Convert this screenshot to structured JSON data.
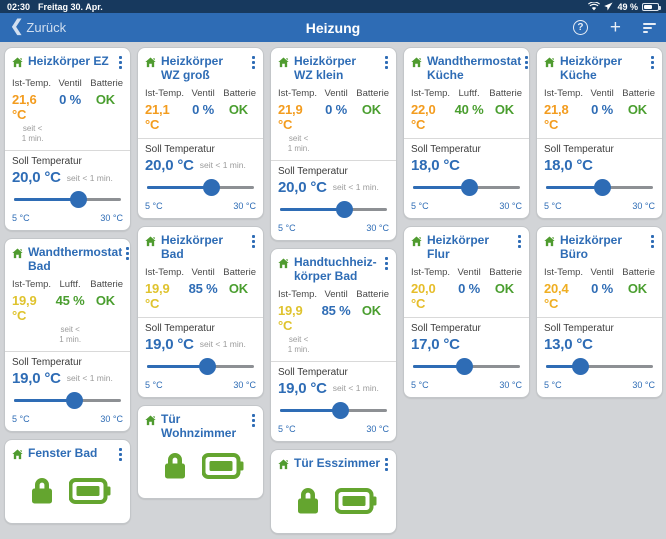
{
  "status_bar": {
    "time": "02:30",
    "date": "Freitag 30. Apr.",
    "battery_percent": "49 %"
  },
  "nav_bar": {
    "back_label": "Zurück",
    "back_chevron": "❮",
    "title": "Heizung",
    "help_glyph": "?",
    "plus_glyph": "+"
  },
  "labels": {
    "soll": "Soll Temperatur",
    "seit": "seit < 1 min.",
    "seit_lines": [
      "seit <",
      "1 min."
    ],
    "min_temp": "5 °C",
    "max_temp": "30 °C"
  },
  "colors": {
    "accent_blue": "#2e6cb5",
    "green": "#4a9e2f",
    "icon_green": "#64a52f",
    "orange": "#f39c1e",
    "yellow": "#dfc32e"
  },
  "grid": {
    "columns": [
      {
        "cards": [
          {
            "type": "thermostat",
            "title_lines": [
              "Heizkörper EZ"
            ],
            "stats": [
              {
                "label": "Ist-Temp.",
                "value": "21,6 °C",
                "color": "#f39c1e"
              },
              {
                "label": "Ventil",
                "value": "0 %",
                "color": "#2e6cb5"
              },
              {
                "label": "Batterie",
                "value": "OK",
                "color": "#4a9e2f"
              }
            ],
            "seit_under_stat": 0,
            "soll_value": "20,0 °C",
            "soll_seit": true,
            "slider_percent": 60
          },
          {
            "type": "thermostat",
            "title_lines": [
              "Wandthermostat",
              "Bad"
            ],
            "stats": [
              {
                "label": "Ist-Temp.",
                "value": "19,9 °C",
                "color": "#dfc32e"
              },
              {
                "label": "Luftf.",
                "value": "45 %",
                "color": "#4a9e2f"
              },
              {
                "label": "Batterie",
                "value": "OK",
                "color": "#4a9e2f"
              }
            ],
            "seit_under_stat": 1,
            "soll_value": "19,0 °C",
            "soll_seit": true,
            "slider_percent": 56
          },
          {
            "type": "lock",
            "title_lines": [
              "Fenster Bad"
            ]
          }
        ]
      },
      {
        "cards": [
          {
            "type": "thermostat",
            "title_lines": [
              "Heizkörper",
              "WZ groß"
            ],
            "stats": [
              {
                "label": "Ist-Temp.",
                "value": "21,1 °C",
                "color": "#f39c1e"
              },
              {
                "label": "Ventil",
                "value": "0 %",
                "color": "#2e6cb5"
              },
              {
                "label": "Batterie",
                "value": "OK",
                "color": "#4a9e2f"
              }
            ],
            "seit_under_stat": null,
            "soll_value": "20,0 °C",
            "soll_seit": true,
            "slider_percent": 60
          },
          {
            "type": "thermostat",
            "title_lines": [
              "Heizkörper Bad"
            ],
            "stats": [
              {
                "label": "Ist-Temp.",
                "value": "19,9 °C",
                "color": "#dfc32e"
              },
              {
                "label": "Ventil",
                "value": "85 %",
                "color": "#2e6cb5"
              },
              {
                "label": "Batterie",
                "value": "OK",
                "color": "#4a9e2f"
              }
            ],
            "seit_under_stat": null,
            "soll_value": "19,0 °C",
            "soll_seit": true,
            "slider_percent": 56
          },
          {
            "type": "lock",
            "title_lines": [
              "Tür Wohnzimmer"
            ]
          }
        ]
      },
      {
        "cards": [
          {
            "type": "thermostat",
            "title_lines": [
              "Heizkörper",
              "WZ klein"
            ],
            "stats": [
              {
                "label": "Ist-Temp.",
                "value": "21,9 °C",
                "color": "#f39c1e"
              },
              {
                "label": "Ventil",
                "value": "0 %",
                "color": "#2e6cb5"
              },
              {
                "label": "Batterie",
                "value": "OK",
                "color": "#4a9e2f"
              }
            ],
            "seit_under_stat": 0,
            "soll_value": "20,0 °C",
            "soll_seit": true,
            "slider_percent": 60
          },
          {
            "type": "thermostat",
            "title_lines": [
              "Handtuchheiz-",
              "körper Bad"
            ],
            "stats": [
              {
                "label": "Ist-Temp.",
                "value": "19,9 °C",
                "color": "#dfc32e"
              },
              {
                "label": "Ventil",
                "value": "85 %",
                "color": "#2e6cb5"
              },
              {
                "label": "Batterie",
                "value": "OK",
                "color": "#4a9e2f"
              }
            ],
            "seit_under_stat": 0,
            "soll_value": "19,0 °C",
            "soll_seit": true,
            "slider_percent": 56
          },
          {
            "type": "lock",
            "title_lines": [
              "Tür Esszimmer"
            ]
          }
        ]
      },
      {
        "cards": [
          {
            "type": "thermostat",
            "title_lines": [
              "Wandthermostat",
              "Küche"
            ],
            "stats": [
              {
                "label": "Ist-Temp.",
                "value": "22,0 °C",
                "color": "#f39c1e"
              },
              {
                "label": "Luftf.",
                "value": "40 %",
                "color": "#4a9e2f"
              },
              {
                "label": "Batterie",
                "value": "OK",
                "color": "#4a9e2f"
              }
            ],
            "seit_under_stat": null,
            "soll_value": "18,0 °C",
            "soll_seit": false,
            "slider_percent": 52
          },
          {
            "type": "thermostat",
            "title_lines": [
              "Heizkörper Flur"
            ],
            "stats": [
              {
                "label": "Ist-Temp.",
                "value": "20,0 °C",
                "color": "#e6bd2a"
              },
              {
                "label": "Ventil",
                "value": "0 %",
                "color": "#2e6cb5"
              },
              {
                "label": "Batterie",
                "value": "OK",
                "color": "#4a9e2f"
              }
            ],
            "seit_under_stat": null,
            "soll_value": "17,0 °C",
            "soll_seit": false,
            "slider_percent": 48
          }
        ]
      },
      {
        "cards": [
          {
            "type": "thermostat",
            "title_lines": [
              "Heizkörper Küche"
            ],
            "stats": [
              {
                "label": "Ist-Temp.",
                "value": "21,8 °C",
                "color": "#f39c1e"
              },
              {
                "label": "Ventil",
                "value": "0 %",
                "color": "#2e6cb5"
              },
              {
                "label": "Batterie",
                "value": "OK",
                "color": "#4a9e2f"
              }
            ],
            "seit_under_stat": null,
            "soll_value": "18,0 °C",
            "soll_seit": false,
            "slider_percent": 52
          },
          {
            "type": "thermostat",
            "title_lines": [
              "Heizkörper Büro"
            ],
            "stats": [
              {
                "label": "Ist-Temp.",
                "value": "20,4 °C",
                "color": "#efae22"
              },
              {
                "label": "Ventil",
                "value": "0 %",
                "color": "#2e6cb5"
              },
              {
                "label": "Batterie",
                "value": "OK",
                "color": "#4a9e2f"
              }
            ],
            "seit_under_stat": null,
            "soll_value": "13,0 °C",
            "soll_seit": false,
            "slider_percent": 32
          }
        ]
      }
    ]
  }
}
